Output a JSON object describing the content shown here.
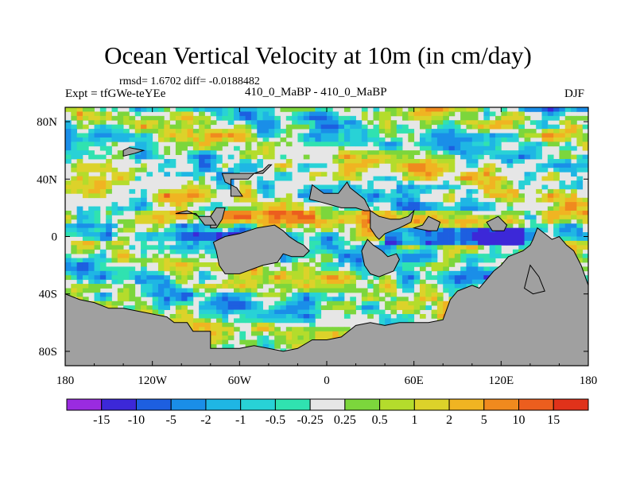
{
  "header": {
    "title": "Ocean Vertical Velocity at 10m (in cm/day)",
    "stats": "rmsd= 1.6702 diff= -0.0188482",
    "left_label": "Expt = tfGWe-teYEe",
    "center_label": "410_0_MaBP - 410_0_MaBP",
    "right_label": "DJF"
  },
  "chart_data": {
    "type": "heatmap",
    "title": "Ocean Vertical Velocity at 10m (in cm/day)",
    "xlabel": "",
    "ylabel": "",
    "x_range": [
      -180,
      180
    ],
    "y_range": [
      -90,
      90
    ],
    "x_ticks": [
      {
        "value": -180,
        "label": "180"
      },
      {
        "value": -120,
        "label": "120W"
      },
      {
        "value": -60,
        "label": "60W"
      },
      {
        "value": 0,
        "label": "0"
      },
      {
        "value": 60,
        "label": "60E"
      },
      {
        "value": 120,
        "label": "120E"
      },
      {
        "value": 180,
        "label": "180"
      }
    ],
    "y_ticks": [
      {
        "value": 80,
        "label": "80N"
      },
      {
        "value": 40,
        "label": "40N"
      },
      {
        "value": 0,
        "label": "0"
      },
      {
        "value": -40,
        "label": "40S"
      },
      {
        "value": -80,
        "label": "80S"
      }
    ],
    "colorbar": {
      "labels": [
        "-15",
        "-10",
        "-5",
        "-2",
        "-1",
        "-0.5",
        "-0.25",
        "0.25",
        "0.5",
        "1",
        "2",
        "5",
        "10",
        "15"
      ],
      "colors": [
        "#9a2be0",
        "#3c28d8",
        "#1d5fe0",
        "#1a8ee8",
        "#1fb6e4",
        "#28d2d6",
        "#30e2b0",
        "#e6e6e6",
        "#7cd63c",
        "#b4dc2c",
        "#dcd22a",
        "#f0b422",
        "#f08a1e",
        "#ec5e1e",
        "#e0321a"
      ]
    },
    "land_color": "#a0a0a0"
  }
}
